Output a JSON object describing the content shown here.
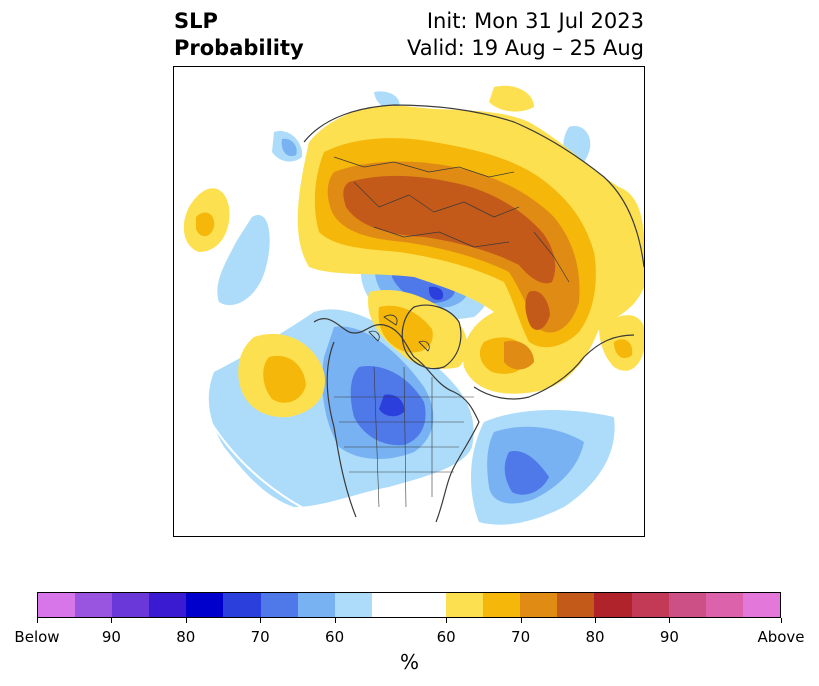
{
  "title": {
    "left_line1": "SLP",
    "left_line2": "Probability",
    "right_line1": "Init: Mon 31 Jul 2023",
    "right_line2": "Valid: 19 Aug – 25 Aug"
  },
  "colorbar": {
    "unit_label": "%",
    "tick_labels": [
      "Below",
      "90",
      "80",
      "70",
      "60",
      "60",
      "70",
      "80",
      "90",
      "Above"
    ],
    "colors": [
      "#d676e8",
      "#9a55e0",
      "#6a38d8",
      "#3b1bd2",
      "#0000cc",
      "#2a3fdc",
      "#4f78e8",
      "#78b2f2",
      "#acdcfa",
      "#ffffff",
      "#ffffff",
      "#fde050",
      "#f4b70a",
      "#e08c14",
      "#c45a1a",
      "#b0232a",
      "#c23a55",
      "#cc4f86",
      "#dc62ac",
      "#e477da"
    ]
  },
  "map": {
    "palette": {
      "blue_light": "#acdcfa",
      "blue_mid": "#78b2f2",
      "blue_med": "#4f78e8",
      "blue_dark": "#2a3fdc",
      "yellow": "#fde050",
      "gold": "#f4b70a",
      "orange": "#e08c14",
      "rust": "#c45a1a",
      "coast": "#3a3a3a"
    }
  }
}
